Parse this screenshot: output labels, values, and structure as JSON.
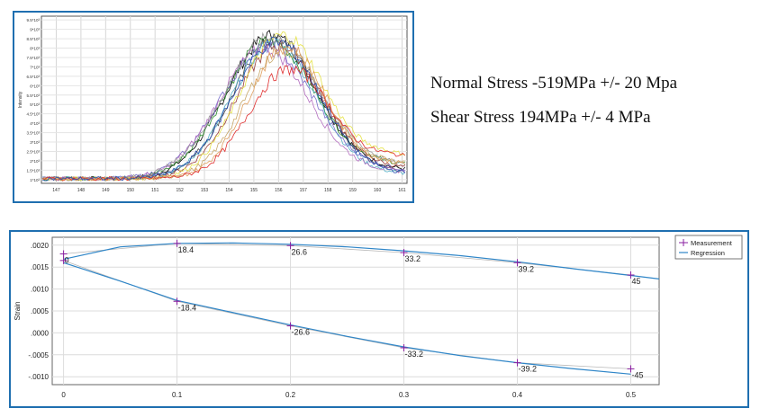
{
  "stress": {
    "normal": "Normal Stress -519MPa +/- 20 Mpa",
    "shear": "Shear Stress 194MPa +/- 4 MPa"
  },
  "chart_data": [
    {
      "type": "line",
      "ylabel": "Intensity",
      "x_ticks": [
        "147",
        "148",
        "149",
        "150",
        "151",
        "152",
        "153",
        "154",
        "155",
        "156",
        "157",
        "158",
        "159",
        "160",
        "161"
      ],
      "y_ticks": [
        "1*10³",
        "1.5*10³",
        "2*10³",
        "2.5*10³",
        "3*10³",
        "3.5*10³",
        "4*10³",
        "4.5*10³",
        "5*10³",
        "5.5*10³",
        "6*10³",
        "6.5*10³",
        "7*10³",
        "7.5*10³",
        "8*10³",
        "8.5*10³",
        "9*10³",
        "9.5*10³"
      ],
      "xlim": [
        146.4,
        161.2
      ],
      "ylim": [
        800,
        9700
      ],
      "series": [
        {
          "color": "#000000",
          "peak": 155.7,
          "amp": 7600,
          "width": 1.8,
          "end": 1500
        },
        {
          "color": "#444444",
          "peak": 155.9,
          "amp": 7400,
          "width": 1.75,
          "end": 1400
        },
        {
          "color": "#2b8c2b",
          "peak": 155.6,
          "amp": 7300,
          "width": 1.8,
          "end": 1800
        },
        {
          "color": "#55b0c8",
          "peak": 155.8,
          "amp": 7200,
          "width": 1.7,
          "end": 1300
        },
        {
          "color": "#9a3e3e",
          "peak": 156.0,
          "amp": 7100,
          "width": 1.7,
          "end": 1600
        },
        {
          "color": "#7a6fcc",
          "peak": 155.5,
          "amp": 7000,
          "width": 1.85,
          "end": 1500
        },
        {
          "color": "#b46fc0",
          "peak": 155.4,
          "amp": 6900,
          "width": 1.8,
          "end": 1400
        },
        {
          "color": "#999999",
          "peak": 155.7,
          "amp": 7500,
          "width": 1.9,
          "end": 1700
        },
        {
          "color": "#e6e34a",
          "peak": 156.1,
          "amp": 7600,
          "width": 1.65,
          "end": 2300
        },
        {
          "color": "#c8a86a",
          "peak": 156.2,
          "amp": 6800,
          "width": 1.6,
          "end": 1900
        },
        {
          "color": "#e0a060",
          "peak": 156.3,
          "amp": 7000,
          "width": 1.55,
          "end": 1800
        },
        {
          "color": "#e03030",
          "peak": 156.4,
          "amp": 5800,
          "width": 1.6,
          "end": 2200
        },
        {
          "color": "#2a4fb0",
          "peak": 155.9,
          "amp": 7300,
          "width": 1.75,
          "end": 1300
        }
      ]
    },
    {
      "type": "line",
      "ylabel": "Strain",
      "x_ticks": [
        "0",
        "0.1",
        "0.2",
        "0.3",
        "0.4",
        "0.5"
      ],
      "y_ticks": [
        ".0020",
        ".0015",
        ".0010",
        ".0005",
        ".0000",
        "-.0005",
        "-.0010"
      ],
      "xlim": [
        -0.01,
        0.525
      ],
      "ylim": [
        -0.00118,
        0.00218
      ],
      "legend": {
        "position": "top-right",
        "items": [
          "Measurement",
          "Regression"
        ]
      },
      "measurement_upper": [
        {
          "x": 0.0,
          "y": 0.0018,
          "label": "0"
        },
        {
          "x": 0.1,
          "y": 0.00204,
          "label": "18.4"
        },
        {
          "x": 0.2,
          "y": 0.00199,
          "label": "26.6"
        },
        {
          "x": 0.3,
          "y": 0.00183,
          "label": "33.2"
        },
        {
          "x": 0.4,
          "y": 0.0016,
          "label": "39.2"
        },
        {
          "x": 0.5,
          "y": 0.00132,
          "label": "45"
        }
      ],
      "measurement_lower": [
        {
          "x": 0.0,
          "y": 0.00165,
          "label": ""
        },
        {
          "x": 0.1,
          "y": 0.00072,
          "label": "-18.4"
        },
        {
          "x": 0.2,
          "y": 0.00016,
          "label": "-26.6"
        },
        {
          "x": 0.3,
          "y": -0.00034,
          "label": "-33.2"
        },
        {
          "x": 0.4,
          "y": -0.00068,
          "label": "-39.2"
        },
        {
          "x": 0.5,
          "y": -0.00082,
          "label": "-45"
        }
      ],
      "regression_upper": [
        [
          0.0,
          0.00168
        ],
        [
          0.05,
          0.00196
        ],
        [
          0.1,
          0.00204
        ],
        [
          0.15,
          0.00205
        ],
        [
          0.2,
          0.00202
        ],
        [
          0.25,
          0.00196
        ],
        [
          0.3,
          0.00187
        ],
        [
          0.35,
          0.00176
        ],
        [
          0.4,
          0.00162
        ],
        [
          0.45,
          0.00146
        ],
        [
          0.5,
          0.00131
        ],
        [
          0.525,
          0.00123
        ]
      ],
      "regression_lower": [
        [
          0.0,
          0.0016
        ],
        [
          0.05,
          0.00118
        ],
        [
          0.1,
          0.00074
        ],
        [
          0.15,
          0.00046
        ],
        [
          0.2,
          0.00018
        ],
        [
          0.25,
          -8e-05
        ],
        [
          0.3,
          -0.00032
        ],
        [
          0.35,
          -0.00052
        ],
        [
          0.4,
          -0.00068
        ],
        [
          0.45,
          -0.00082
        ],
        [
          0.5,
          -0.00094
        ]
      ]
    }
  ]
}
